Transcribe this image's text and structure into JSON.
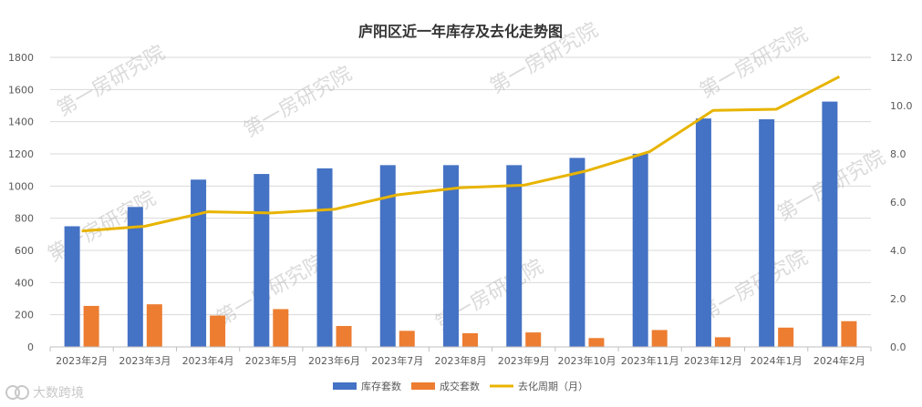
{
  "chart_data": {
    "type": "bar",
    "title": "庐阳区近一年库存及去化走势图",
    "categories": [
      "2023年2月",
      "2023年3月",
      "2023年4月",
      "2023年5月",
      "2023年6月",
      "2023年7月",
      "2023年8月",
      "2023年9月",
      "2023年10月",
      "2023年11月",
      "2023年12月",
      "2024年1月",
      "2024年2月"
    ],
    "series": [
      {
        "name": "库存套数",
        "type": "bar",
        "axis": "left",
        "color": "#4472C4",
        "values": [
          750,
          870,
          1040,
          1075,
          1110,
          1130,
          1130,
          1130,
          1175,
          1200,
          1420,
          1415,
          1525
        ]
      },
      {
        "name": "成交套数",
        "type": "bar",
        "axis": "left",
        "color": "#ED7D31",
        "values": [
          255,
          265,
          195,
          235,
          130,
          100,
          85,
          90,
          55,
          105,
          60,
          120,
          160
        ]
      },
      {
        "name": "去化周期（月）",
        "type": "line",
        "axis": "right",
        "color": "#E8B400",
        "values": [
          4.8,
          5.0,
          5.6,
          5.55,
          5.7,
          6.3,
          6.6,
          6.7,
          7.3,
          8.1,
          9.8,
          9.85,
          11.2
        ]
      }
    ],
    "y_left": {
      "min": 0,
      "max": 1800,
      "step": 200,
      "ticks": [
        "0",
        "200",
        "400",
        "600",
        "800",
        "1000",
        "1200",
        "1400",
        "1600",
        "1800"
      ]
    },
    "y_right": {
      "min": 0,
      "max": 12,
      "step": 2,
      "ticks": [
        "0.0",
        "2.0",
        "4.0",
        "6.0",
        "8.0",
        "10.0",
        "12.0"
      ]
    },
    "grid": true,
    "legend_position": "bottom-center"
  },
  "watermark": {
    "text": "第一房研究院"
  },
  "logo": {
    "text": "大数跨境"
  }
}
